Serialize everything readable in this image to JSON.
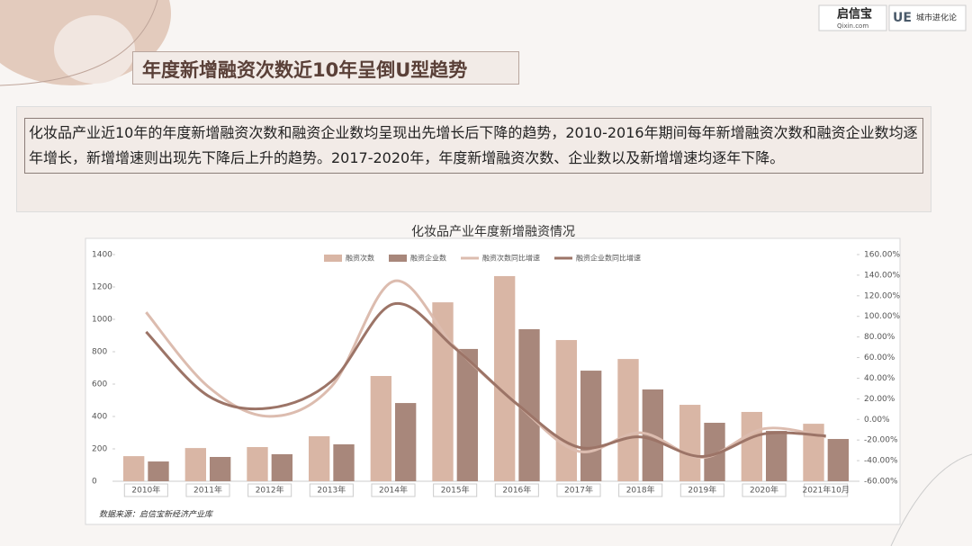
{
  "header": {
    "title": "年度新增融资次数近10年呈倒U型趋势",
    "logo1": "启信宝",
    "logo1_sub": "Qixin.com",
    "logo2": "UE",
    "logo2_text": "城市进化论"
  },
  "paragraph": "化妆品产业近10年的年度新增融资次数和融资企业数均呈现出先增长后下降的趋势，2010-2016年期间每年新增融资次数和融资企业数均逐年增长，新增增速则出现先下降后上升的趋势。2017-2020年，年度新增融资次数、企业数以及新增增速均逐年下降。",
  "source": "数据来源：启信宝新经济产业库",
  "chart_data": {
    "type": "bar",
    "title": "化妆品产业年度新增融资情况",
    "categories": [
      "2010年",
      "2011年",
      "2012年",
      "2013年",
      "2014年",
      "2015年",
      "2016年",
      "2017年",
      "2018年",
      "2019年",
      "2020年",
      "2021年10月"
    ],
    "series": [
      {
        "name": "融资次数",
        "color": "#d9b6a5",
        "values": [
          155,
          205,
          211,
          278,
          650,
          1105,
          1267,
          872,
          755,
          472,
          428,
          355
        ]
      },
      {
        "name": "融资企业数",
        "color": "#a8877b",
        "values": [
          122,
          150,
          167,
          228,
          483,
          817,
          939,
          683,
          567,
          361,
          311,
          261
        ]
      },
      {
        "name": "融资次数同比增速",
        "type": "line",
        "axis": "y2",
        "color": "#dcbcaf",
        "values": [
          104,
          32,
          3,
          32,
          134,
          70,
          15,
          -31,
          -13,
          -37,
          -9,
          -17
        ]
      },
      {
        "name": "融资企业数同比增速",
        "type": "line",
        "axis": "y2",
        "color": "#9c7467",
        "values": [
          85,
          23,
          11,
          37,
          112,
          69,
          15,
          -27,
          -17,
          -36,
          -14,
          -16
        ]
      }
    ],
    "ylim": [
      0,
      1400
    ],
    "yticks": [
      0,
      200,
      400,
      600,
      800,
      1000,
      1200,
      1400
    ],
    "y2lim": [
      -60,
      160
    ],
    "y2ticks": [
      {
        "value": -60,
        "label": "-60.00%"
      },
      {
        "value": -40,
        "label": "-40.00%"
      },
      {
        "value": -20,
        "label": "-20.00%"
      },
      {
        "value": 0,
        "label": "0.00%"
      },
      {
        "value": 20,
        "label": "20.00%"
      },
      {
        "value": 40,
        "label": "40.00%"
      },
      {
        "value": 60,
        "label": "60.00%"
      },
      {
        "value": 80,
        "label": "80.00%"
      },
      {
        "value": 100,
        "label": "100.00%"
      },
      {
        "value": 120,
        "label": "120.00%"
      },
      {
        "value": 140,
        "label": "140.00%"
      },
      {
        "value": 160,
        "label": "160.00%"
      }
    ],
    "grid": false,
    "legend": "top"
  }
}
